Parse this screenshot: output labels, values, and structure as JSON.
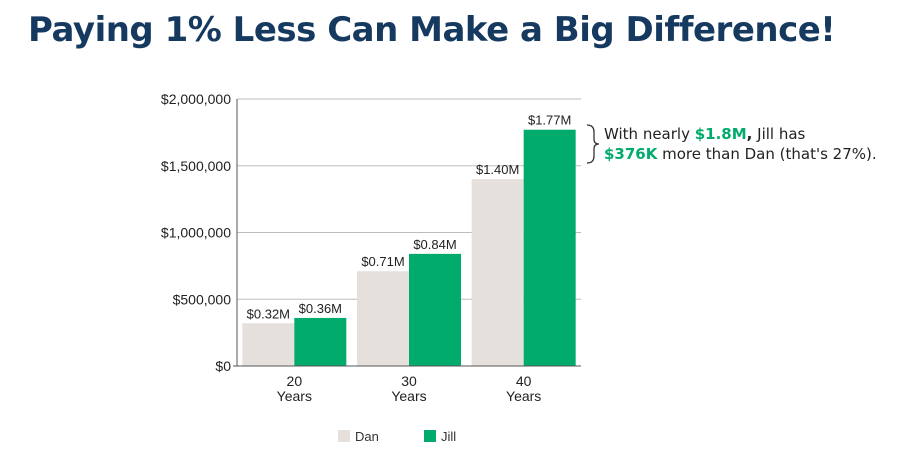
{
  "title": "Paying 1% Less Can Make a Big Difference!",
  "annotation": {
    "line1_pre": "With nearly ",
    "line1_hl": "$1.8M",
    "line1_comma": ",",
    "line1_post": " Jill has",
    "line2_hl": "$376K",
    "line2_post": " more than Dan (that's 27%)."
  },
  "colors": {
    "dan": "#e6e0dc",
    "jill": "#00ab6b",
    "axis": "#555555",
    "grid": "#bdbdbd",
    "title": "#163a5f"
  },
  "chart_data": {
    "type": "bar",
    "title": "",
    "xlabel": "",
    "ylabel": "",
    "categories": [
      [
        "20",
        "Years"
      ],
      [
        "30",
        "Years"
      ],
      [
        "40",
        "Years"
      ]
    ],
    "series": [
      {
        "name": "Dan",
        "values": [
          320000,
          710000,
          1400000
        ],
        "labels": [
          "$0.32M",
          "$0.71M",
          "$1.40M"
        ]
      },
      {
        "name": "Jill",
        "values": [
          360000,
          840000,
          1770000
        ],
        "labels": [
          "$0.36M",
          "$0.84M",
          "$1.77M"
        ]
      }
    ],
    "yticks": [
      0,
      500000,
      1000000,
      1500000,
      2000000
    ],
    "ytick_labels": [
      "$0",
      "$500,000",
      "$1,000,000",
      "$1,500,000",
      "$2,000,000"
    ],
    "ylim": [
      0,
      2000000
    ],
    "grid": true,
    "legend": "bottom"
  }
}
